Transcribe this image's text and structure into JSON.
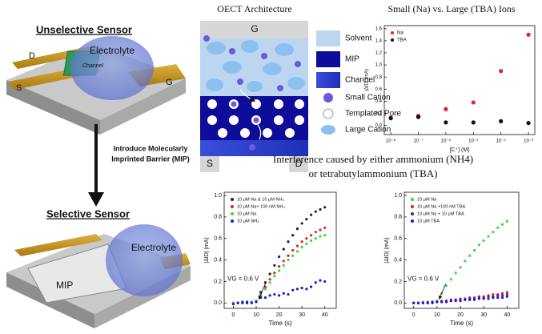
{
  "labels": {
    "unselective": "Unselective Sensor",
    "selective": "Selective Sensor",
    "introduce": [
      "Introduce Molecularly",
      "Imprinted Barrier (MIP)"
    ],
    "device1": {
      "d": "D",
      "s": "S",
      "g": "G",
      "electrolyte": "Electrolyte",
      "channel": "Channel"
    },
    "device2": {
      "electrolyte": "Electrolyte",
      "mip": "MIP"
    },
    "oect": {
      "title": "OECT Architecture",
      "g": "G",
      "s": "S",
      "d": "D",
      "legend": [
        "Solvent",
        "MIP",
        "Channel",
        "Small Cation",
        "Templated Pore",
        "Large Cation"
      ]
    },
    "interference": [
      "Interference caused by either ammonium (NH4)",
      "or tetrabutylammonium (TBA)"
    ]
  },
  "chart_data": [
    {
      "type": "scatter",
      "title": "Small (Na) vs. Large (TBA) Ions",
      "xlabel": "[C⁺] (M)",
      "ylabel": "|ΔID| (mA)",
      "log_x": true,
      "legend": "upper left",
      "x": [
        1e-08,
        1e-07,
        1e-06,
        1e-05,
        0.0001,
        0.001
      ],
      "xlim": [
        5.8e-09,
        0.0017
      ],
      "xticks": [
        {
          "value": 1e-08,
          "label": "10⁻⁸"
        },
        {
          "value": 1e-07,
          "label": "10⁻⁷"
        },
        {
          "value": 1e-06,
          "label": "10⁻⁶"
        },
        {
          "value": 1e-05,
          "label": "10⁻⁵"
        },
        {
          "value": 0.0001,
          "label": "10⁻⁴"
        },
        {
          "value": 0.001,
          "label": "10⁻³"
        }
      ],
      "ylim": [
        -0.15,
        1.65
      ],
      "yticks": [
        {
          "value": 0,
          "label": "0.0"
        },
        0.2,
        0.4,
        0.6,
        0.8,
        {
          "value": 1,
          "label": "1.0"
        },
        1.2,
        1.4,
        1.6
      ],
      "series": [
        {
          "name": "Na",
          "color": "#e8202a",
          "values": [
            0.13,
            0.16,
            0.27,
            0.38,
            0.9,
            1.5
          ]
        },
        {
          "name": "TBA",
          "color": "#111111",
          "values": [
            0.12,
            0.14,
            0.05,
            0.05,
            0.07,
            0.04
          ]
        }
      ]
    },
    {
      "type": "scatter",
      "xlabel": "Time (s)",
      "ylabel": "|ΔID| (mA)",
      "annotation": "VG = 0.6 V",
      "legend": "upper left",
      "x": [
        0,
        2,
        4,
        6,
        8,
        10,
        12,
        14,
        16,
        18,
        20,
        22,
        24,
        26,
        28,
        30,
        32,
        34,
        36,
        38,
        40
      ],
      "xlim": [
        -4,
        45
      ],
      "xticks": [
        0,
        10,
        20,
        30,
        40
      ],
      "ylim": [
        -0.05,
        1.03
      ],
      "yticks": [
        {
          "value": 0,
          "label": "0.0"
        },
        0.2,
        0.4,
        0.6,
        0.8,
        {
          "value": 1,
          "label": "1.0"
        }
      ],
      "series": [
        {
          "name": "10 μM Na & 10 μM NH₄",
          "color": "#222222",
          "values": [
            0,
            0,
            0.01,
            0,
            0.01,
            0.02,
            0.1,
            0.19,
            0.27,
            0.35,
            0.43,
            0.5,
            0.57,
            0.63,
            0.69,
            0.74,
            0.78,
            0.82,
            0.85,
            0.87,
            0.89
          ]
        },
        {
          "name": "10 μM Na+ 100 nM NH₄",
          "color": "#e8202a",
          "values": [
            0,
            0,
            0,
            0.01,
            0.01,
            0.02,
            0.08,
            0.15,
            0.22,
            0.28,
            0.34,
            0.39,
            0.44,
            0.49,
            0.53,
            0.57,
            0.6,
            0.63,
            0.66,
            0.68,
            0.7
          ]
        },
        {
          "name": "10 μM Na",
          "color": "#33dd33",
          "values": [
            0,
            0,
            0,
            0.01,
            0.01,
            0.02,
            0.07,
            0.13,
            0.19,
            0.25,
            0.3,
            0.35,
            0.4,
            0.44,
            0.48,
            0.52,
            0.55,
            0.58,
            0.6,
            0.62,
            0.63
          ]
        },
        {
          "name": "10 μM NH₄",
          "color": "#1a1ad0",
          "values": [
            -0.01,
            0,
            0,
            0.01,
            0,
            0.01,
            0.05,
            0.05,
            0.07,
            0.08,
            0.07,
            0.09,
            0.08,
            0.12,
            0.13,
            0.14,
            0.13,
            0.15,
            0.19,
            0.21,
            0.2
          ]
        }
      ]
    },
    {
      "type": "scatter",
      "xlabel": "Time (s)",
      "ylabel": "|ΔID| (mA)",
      "annotation": "VG = 0.6 V",
      "legend": "upper left",
      "x": [
        0,
        2,
        4,
        6,
        8,
        10,
        12,
        14,
        16,
        18,
        20,
        22,
        24,
        26,
        28,
        30,
        32,
        34,
        36,
        38,
        40
      ],
      "xlim": [
        -4,
        45
      ],
      "xticks": [
        0,
        10,
        20,
        30,
        40
      ],
      "ylim": [
        -0.05,
        1.03
      ],
      "yticks": [
        {
          "value": 0,
          "label": "0.0"
        },
        0.2,
        0.4,
        0.6,
        0.8,
        {
          "value": 1,
          "label": "1.0"
        }
      ],
      "series": [
        {
          "name": "10 μM Na",
          "color": "#33dd33",
          "values": [
            0,
            0,
            0.01,
            0,
            0.01,
            0.02,
            0.09,
            0.16,
            0.22,
            0.28,
            0.33,
            0.39,
            0.44,
            0.49,
            0.54,
            0.58,
            0.62,
            0.66,
            0.7,
            0.73,
            0.76
          ]
        },
        {
          "name": "10 μM Na +100 nM TBA",
          "color": "#e8202a",
          "values": [
            0,
            0,
            0,
            0.01,
            0.01,
            0.01,
            0.02,
            0.02,
            0.03,
            0.03,
            0.04,
            0.04,
            0.05,
            0.05,
            0.06,
            0.06,
            0.07,
            0.08,
            0.08,
            0.09,
            0.1
          ]
        },
        {
          "name": "10 μM Na + 10 μM TBA",
          "color": "#5a1a8a",
          "values": [
            0,
            0,
            0,
            0,
            0.01,
            0.01,
            0.01,
            0.02,
            0.02,
            0.03,
            0.03,
            0.03,
            0.04,
            0.04,
            0.05,
            0.05,
            0.06,
            0.06,
            0.07,
            0.07,
            0.08
          ]
        },
        {
          "name": "10 μM TBA",
          "color": "#1a1ad0",
          "values": [
            0,
            0,
            0,
            0,
            0,
            0.01,
            0.01,
            0.01,
            0.02,
            0.02,
            0.02,
            0.03,
            0.03,
            0.03,
            0.04,
            0.04,
            0.04,
            0.05,
            0.05,
            0.05,
            0.06
          ]
        }
      ]
    }
  ]
}
